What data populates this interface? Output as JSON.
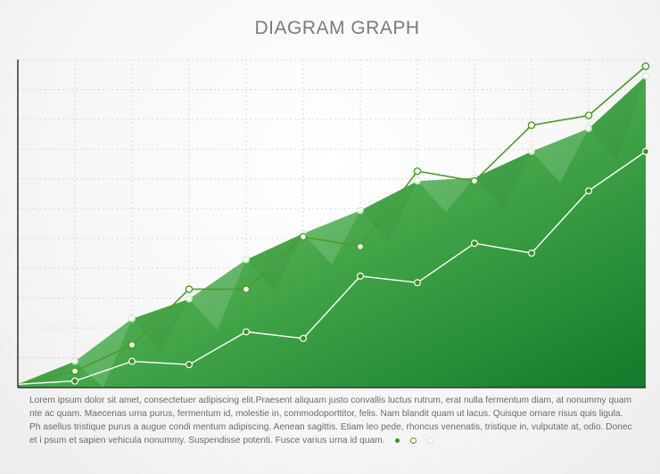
{
  "chart_data": {
    "type": "line",
    "title": "DIAGRAM GRAPH",
    "xlabel": "",
    "ylabel": "",
    "grid": true,
    "x": [
      0,
      1,
      2,
      3,
      4,
      5,
      6,
      7,
      8,
      9,
      10,
      11
    ],
    "xlim": [
      0,
      11
    ],
    "ylim": [
      0,
      10
    ],
    "series": [
      {
        "style": "area",
        "color": "#3f9c3a",
        "values": [
          0.1,
          0.8,
          2.1,
          2.7,
          3.9,
          4.7,
          5.4,
          6.3,
          6.4,
          7.2,
          7.9,
          9.5
        ]
      },
      {
        "style": "line-dark",
        "color": "#4e9a2a",
        "values": [
          0.1,
          0.5,
          1.3,
          3.0,
          3.0,
          4.6,
          4.3,
          6.6,
          6.3,
          8.0,
          8.3,
          9.8
        ]
      },
      {
        "style": "line-white",
        "color": "#ffffff",
        "values": [
          0.1,
          0.2,
          0.8,
          0.7,
          1.7,
          1.5,
          3.4,
          3.2,
          4.4,
          4.1,
          6.0,
          7.2
        ]
      }
    ],
    "caption": "Lorem ipsum dolor sit amet, consectetuer adipiscing elit.Praesent aliquam justo convallis luctus rutrum, erat nulla fermentum diam, at nonummy quam nte ac quam. Maecenas urna purus, fermentum id, molestie in, commodoporttitor, felis. Nam blandit quam ut lacus. Quisque ornare risus quis ligula. Ph asellus tristique purus a augue condi mentum adipiscing. Aenean sagittis. Etiam leo pede, rhoncus venenatis, tristique in, vulputate at, odio. Donec et i psum et sapien vehicula nonummy. Suspendisse potenti. Fusce varius urna id quam."
  },
  "colors": {
    "accent": "#3f8f1f",
    "axis": "#333333",
    "grid": "#cfcfcf"
  }
}
